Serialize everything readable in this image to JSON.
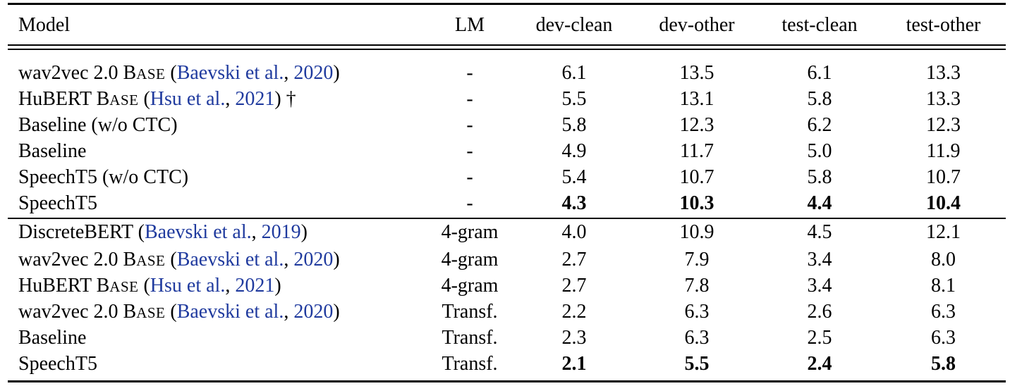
{
  "headers": [
    "Model",
    "LM",
    "dev-clean",
    "dev-other",
    "test-clean",
    "test-other"
  ],
  "groups": [
    [
      {
        "pre": "wav2vec 2.0 B",
        "sc": "ASE",
        "open": " (",
        "cite_name": "Baevski et al.",
        "comma": ", ",
        "cite_year": "2020",
        "close": ")",
        "post": "",
        "lm": "-",
        "v": [
          "6.1",
          "13.5",
          "6.1",
          "13.3"
        ]
      },
      {
        "pre": "HuBERT B",
        "sc": "ASE",
        "open": " (",
        "cite_name": "Hsu et al.",
        "comma": ", ",
        "cite_year": "2021",
        "close": ")",
        "post": " †",
        "lm": "-",
        "v": [
          "5.5",
          "13.1",
          "5.8",
          "13.3"
        ]
      },
      {
        "pre": "Baseline (w/o CTC)",
        "lm": "-",
        "v": [
          "5.8",
          "12.3",
          "6.2",
          "12.3"
        ]
      },
      {
        "pre": "Baseline",
        "lm": "-",
        "v": [
          "4.9",
          "11.7",
          "5.0",
          "11.9"
        ]
      },
      {
        "pre": "SpeechT5 (w/o CTC)",
        "lm": "-",
        "v": [
          "5.4",
          "10.7",
          "5.8",
          "10.7"
        ]
      },
      {
        "pre": "SpeechT5",
        "lm": "-",
        "v": [
          "4.3",
          "10.3",
          "4.4",
          "10.4"
        ],
        "bold": true
      }
    ],
    [
      {
        "pre": "DiscreteBERT",
        "open": " (",
        "cite_name": "Baevski et al.",
        "comma": ", ",
        "cite_year": "2019",
        "close": ")",
        "post": "",
        "lm": "4-gram",
        "v": [
          "4.0",
          "10.9",
          "4.5",
          "12.1"
        ]
      },
      {
        "pre": "wav2vec 2.0 B",
        "sc": "ASE",
        "open": " (",
        "cite_name": "Baevski et al.",
        "comma": ", ",
        "cite_year": "2020",
        "close": ")",
        "post": "",
        "lm": "4-gram",
        "v": [
          "2.7",
          "7.9",
          "3.4",
          "8.0"
        ]
      },
      {
        "pre": "HuBERT B",
        "sc": "ASE",
        "open": " (",
        "cite_name": "Hsu et al.",
        "comma": ", ",
        "cite_year": "2021",
        "close": ")",
        "post": "",
        "lm": "4-gram",
        "v": [
          "2.7",
          "7.8",
          "3.4",
          "8.1"
        ]
      },
      {
        "pre": "wav2vec 2.0 B",
        "sc": "ASE",
        "open": " (",
        "cite_name": "Baevski et al.",
        "comma": ", ",
        "cite_year": "2020",
        "close": ")",
        "post": "",
        "lm": "Transf.",
        "v": [
          "2.2",
          "6.3",
          "2.6",
          "6.3"
        ]
      },
      {
        "pre": "Baseline",
        "lm": "Transf.",
        "v": [
          "2.3",
          "6.3",
          "2.5",
          "6.3"
        ]
      },
      {
        "pre": "SpeechT5",
        "lm": "Transf.",
        "v": [
          "2.1",
          "5.5",
          "2.4",
          "5.8"
        ],
        "bold": true
      }
    ]
  ]
}
